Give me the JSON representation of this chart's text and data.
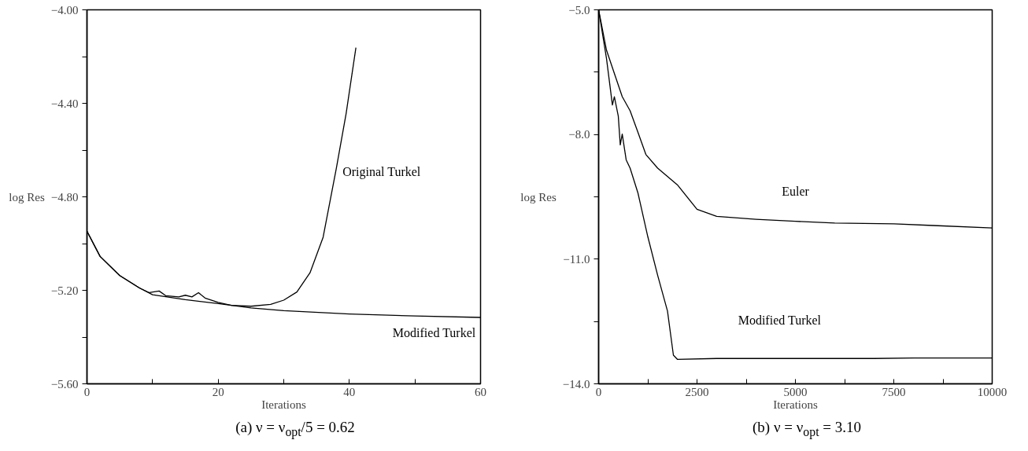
{
  "chart_data": [
    {
      "type": "line",
      "title": "(a) ν = ν$_{opt}$/5 = 0.62",
      "xlabel": "Iterations",
      "ylabel": "log Res",
      "xlim": [
        0,
        60
      ],
      "xticks": [
        0,
        {
          "value": 10,
          "label": null
        },
        20,
        {
          "value": 30,
          "label": null
        },
        40,
        {
          "value": 50,
          "label": null
        },
        60
      ],
      "ylim": [
        -5.6,
        -4.0
      ],
      "yticks": [
        {
          "value": -4.0,
          "label": "−4.00"
        },
        {
          "value": -4.2,
          "label": null
        },
        {
          "value": -4.4,
          "label": "−4.40"
        },
        {
          "value": -4.6,
          "label": null
        },
        {
          "value": -4.8,
          "label": "−4.80"
        },
        {
          "value": -5.0,
          "label": null
        },
        {
          "value": -5.2,
          "label": "−5.20"
        },
        {
          "value": -5.4,
          "label": null
        },
        {
          "value": -5.6,
          "label": "−5.60"
        }
      ],
      "grid": false,
      "marker": "none",
      "line_style": "solid",
      "series": [
        {
          "name": "Original Turkel",
          "color": "#000000",
          "x": [
            0,
            2,
            5,
            8,
            9.5,
            11,
            12,
            14,
            15,
            16,
            17,
            18,
            20,
            22,
            25,
            28,
            30,
            32,
            34,
            36,
            38,
            39.5,
            41
          ],
          "values": [
            -4.947,
            -5.055,
            -5.137,
            -5.19,
            -5.21,
            -5.203,
            -5.223,
            -5.228,
            -5.221,
            -5.228,
            -5.21,
            -5.233,
            -5.252,
            -5.264,
            -5.268,
            -5.26,
            -5.242,
            -5.207,
            -5.125,
            -4.973,
            -4.68,
            -4.445,
            -4.162
          ]
        },
        {
          "name": "Modified Turkel",
          "color": "#000000",
          "x": [
            0,
            2,
            5,
            8,
            10,
            15,
            20,
            25,
            30,
            40,
            50,
            60
          ],
          "values": [
            -4.947,
            -5.055,
            -5.137,
            -5.19,
            -5.219,
            -5.24,
            -5.257,
            -5.275,
            -5.287,
            -5.301,
            -5.31,
            -5.316
          ]
        }
      ]
    },
    {
      "type": "line",
      "title": "(b) ν = ν$_{opt}$ = 3.10",
      "xlabel": "Iterations",
      "ylabel": "log Res",
      "xlim": [
        0,
        10000
      ],
      "xticks": [
        0,
        {
          "value": 1250,
          "label": null
        },
        2500,
        {
          "value": 3750,
          "label": null
        },
        5000,
        {
          "value": 6250,
          "label": null
        },
        7500,
        {
          "value": 8750,
          "label": null
        },
        10000
      ],
      "ylim": [
        -14.0,
        -5.0
      ],
      "yticks": [
        {
          "value": -5.0,
          "label": "−5.0"
        },
        {
          "value": -6.5,
          "label": null
        },
        {
          "value": -8.0,
          "label": "−8.0"
        },
        {
          "value": -9.5,
          "label": null
        },
        {
          "value": -11.0,
          "label": "−11.0"
        },
        {
          "value": -12.5,
          "label": null
        },
        {
          "value": -14.0,
          "label": "−14.0"
        }
      ],
      "grid": false,
      "marker": "none",
      "line_style": "solid",
      "series": [
        {
          "name": "Euler",
          "color": "#000000",
          "x": [
            0,
            200,
            400,
            600,
            800,
            1000,
            1200,
            1500,
            2000,
            2500,
            3000,
            4000,
            5000,
            6000,
            7500,
            8500,
            10000
          ],
          "values": [
            -5.0,
            -5.97,
            -6.53,
            -7.09,
            -7.43,
            -7.95,
            -8.48,
            -8.81,
            -9.21,
            -9.8,
            -9.97,
            -10.04,
            -10.09,
            -10.13,
            -10.15,
            -10.19,
            -10.25
          ]
        },
        {
          "name": "Modified Turkel",
          "color": "#000000",
          "x": [
            0,
            200,
            350,
            400,
            500,
            550,
            600,
            700,
            800,
            1000,
            1250,
            1500,
            1750,
            1900,
            2000,
            3000,
            4000,
            5000,
            6000,
            7000,
            8000,
            9000,
            10000
          ],
          "values": [
            -5.0,
            -6.17,
            -7.29,
            -7.09,
            -7.56,
            -8.25,
            -7.99,
            -8.61,
            -8.81,
            -9.41,
            -10.46,
            -11.39,
            -12.25,
            -13.31,
            -13.41,
            -13.39,
            -13.39,
            -13.39,
            -13.39,
            -13.39,
            -13.38,
            -13.38,
            -13.38
          ]
        }
      ]
    }
  ]
}
